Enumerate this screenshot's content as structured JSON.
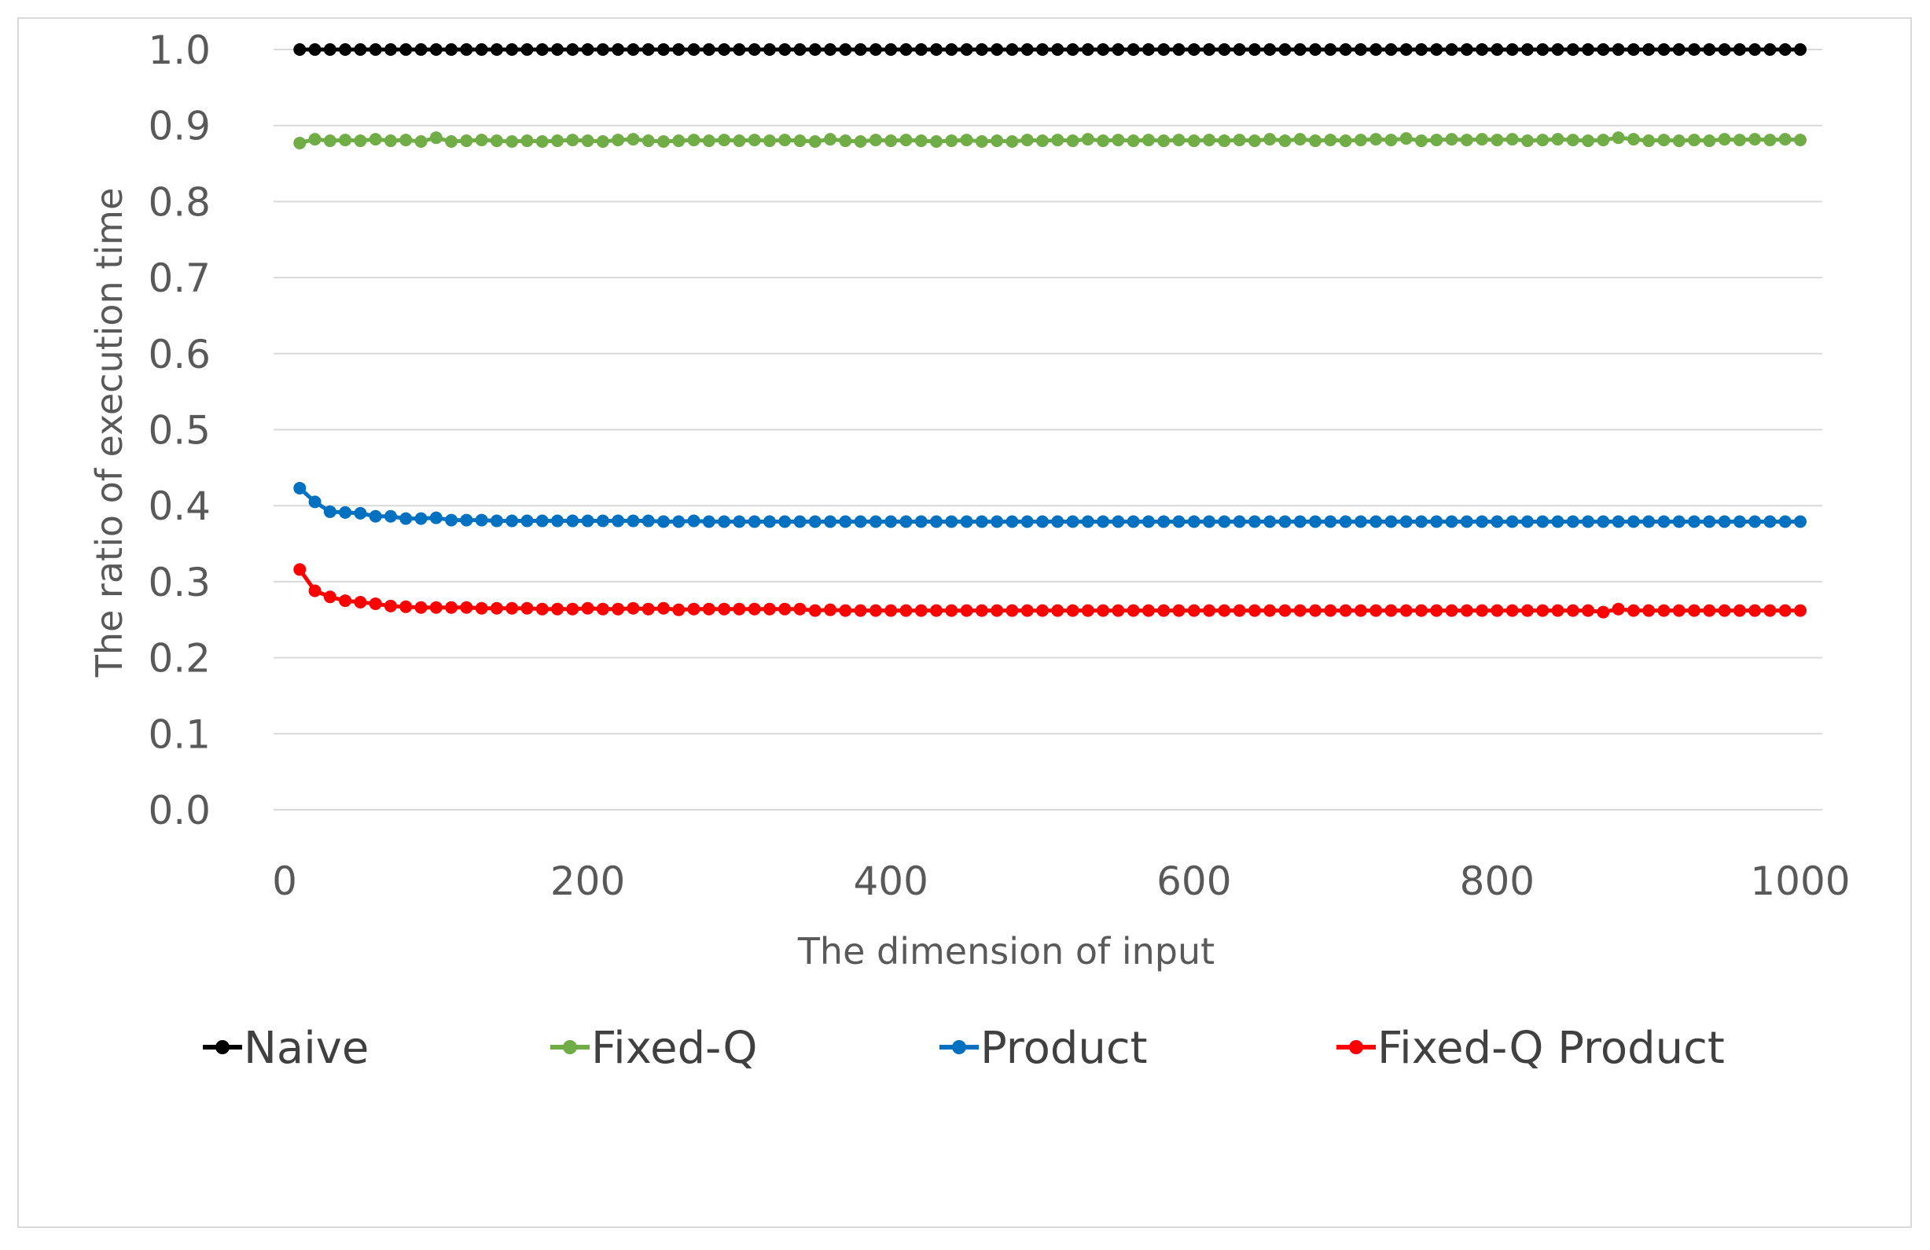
{
  "chart_data": {
    "type": "line",
    "title": "",
    "xlabel": "The dimension of input",
    "ylabel": "The ratio of execution time",
    "xlim": [
      0,
      1000
    ],
    "ylim": [
      0.0,
      1.0
    ],
    "x_ticks": [
      "0",
      "200",
      "400",
      "600",
      "800",
      "1000"
    ],
    "y_ticks": [
      "0.0",
      "0.1",
      "0.2",
      "0.3",
      "0.4",
      "0.5",
      "0.6",
      "0.7",
      "0.8",
      "0.9",
      "1.0"
    ],
    "grid": true,
    "legend_position": "bottom",
    "x": [
      10,
      20,
      30,
      40,
      50,
      60,
      70,
      80,
      90,
      100,
      110,
      120,
      130,
      140,
      150,
      160,
      170,
      180,
      190,
      200,
      210,
      220,
      230,
      240,
      250,
      260,
      270,
      280,
      290,
      300,
      310,
      320,
      330,
      340,
      350,
      360,
      370,
      380,
      390,
      400,
      410,
      420,
      430,
      440,
      450,
      460,
      470,
      480,
      490,
      500,
      510,
      520,
      530,
      540,
      550,
      560,
      570,
      580,
      590,
      600,
      610,
      620,
      630,
      640,
      650,
      660,
      670,
      680,
      690,
      700,
      710,
      720,
      730,
      740,
      750,
      760,
      770,
      780,
      790,
      800,
      810,
      820,
      830,
      840,
      850,
      860,
      870,
      880,
      890,
      900,
      910,
      920,
      930,
      940,
      950,
      960,
      970,
      980,
      990,
      1000
    ],
    "series": [
      {
        "name": "Naive",
        "color": "#000000",
        "values": [
          1.0,
          1.0,
          1.0,
          1.0,
          1.0,
          1.0,
          1.0,
          1.0,
          1.0,
          1.0,
          1.0,
          1.0,
          1.0,
          1.0,
          1.0,
          1.0,
          1.0,
          1.0,
          1.0,
          1.0,
          1.0,
          1.0,
          1.0,
          1.0,
          1.0,
          1.0,
          1.0,
          1.0,
          1.0,
          1.0,
          1.0,
          1.0,
          1.0,
          1.0,
          1.0,
          1.0,
          1.0,
          1.0,
          1.0,
          1.0,
          1.0,
          1.0,
          1.0,
          1.0,
          1.0,
          1.0,
          1.0,
          1.0,
          1.0,
          1.0,
          1.0,
          1.0,
          1.0,
          1.0,
          1.0,
          1.0,
          1.0,
          1.0,
          1.0,
          1.0,
          1.0,
          1.0,
          1.0,
          1.0,
          1.0,
          1.0,
          1.0,
          1.0,
          1.0,
          1.0,
          1.0,
          1.0,
          1.0,
          1.0,
          1.0,
          1.0,
          1.0,
          1.0,
          1.0,
          1.0,
          1.0,
          1.0,
          1.0,
          1.0,
          1.0,
          1.0,
          1.0,
          1.0,
          1.0,
          1.0,
          1.0,
          1.0,
          1.0,
          1.0,
          1.0,
          1.0,
          1.0,
          1.0,
          1.0,
          1.0
        ]
      },
      {
        "name": "Fixed-Q",
        "color": "#70ad47",
        "values": [
          0.877,
          0.882,
          0.88,
          0.881,
          0.88,
          0.882,
          0.88,
          0.881,
          0.879,
          0.884,
          0.879,
          0.88,
          0.881,
          0.88,
          0.879,
          0.88,
          0.879,
          0.88,
          0.881,
          0.88,
          0.879,
          0.881,
          0.882,
          0.88,
          0.879,
          0.88,
          0.881,
          0.88,
          0.881,
          0.88,
          0.881,
          0.88,
          0.881,
          0.88,
          0.879,
          0.882,
          0.88,
          0.879,
          0.881,
          0.88,
          0.881,
          0.88,
          0.879,
          0.88,
          0.881,
          0.879,
          0.88,
          0.879,
          0.881,
          0.88,
          0.881,
          0.88,
          0.882,
          0.88,
          0.881,
          0.88,
          0.881,
          0.88,
          0.881,
          0.88,
          0.881,
          0.88,
          0.881,
          0.88,
          0.882,
          0.88,
          0.882,
          0.88,
          0.881,
          0.88,
          0.881,
          0.882,
          0.881,
          0.883,
          0.88,
          0.881,
          0.882,
          0.881,
          0.882,
          0.881,
          0.882,
          0.88,
          0.881,
          0.882,
          0.881,
          0.88,
          0.881,
          0.884,
          0.882,
          0.88,
          0.881,
          0.88,
          0.881,
          0.88,
          0.882,
          0.881,
          0.882,
          0.881,
          0.882,
          0.881
        ]
      },
      {
        "name": "Product",
        "color": "#0070c0",
        "values": [
          0.423,
          0.405,
          0.392,
          0.391,
          0.39,
          0.386,
          0.386,
          0.383,
          0.383,
          0.384,
          0.381,
          0.381,
          0.381,
          0.38,
          0.38,
          0.38,
          0.38,
          0.38,
          0.38,
          0.38,
          0.38,
          0.38,
          0.38,
          0.38,
          0.379,
          0.379,
          0.38,
          0.379,
          0.379,
          0.379,
          0.379,
          0.379,
          0.379,
          0.379,
          0.379,
          0.379,
          0.379,
          0.379,
          0.379,
          0.379,
          0.379,
          0.379,
          0.379,
          0.379,
          0.379,
          0.379,
          0.379,
          0.379,
          0.379,
          0.379,
          0.379,
          0.379,
          0.379,
          0.379,
          0.379,
          0.379,
          0.379,
          0.379,
          0.379,
          0.379,
          0.379,
          0.379,
          0.379,
          0.379,
          0.379,
          0.379,
          0.379,
          0.379,
          0.379,
          0.379,
          0.379,
          0.379,
          0.379,
          0.379,
          0.379,
          0.379,
          0.379,
          0.379,
          0.379,
          0.379,
          0.379,
          0.379,
          0.379,
          0.379,
          0.379,
          0.379,
          0.379,
          0.379,
          0.379,
          0.379,
          0.379,
          0.379,
          0.379,
          0.379,
          0.379,
          0.379,
          0.379,
          0.379,
          0.379,
          0.379
        ]
      },
      {
        "name": "Fixed-Q Product",
        "color": "#ff0000",
        "values": [
          0.316,
          0.288,
          0.28,
          0.275,
          0.273,
          0.271,
          0.268,
          0.267,
          0.266,
          0.266,
          0.266,
          0.266,
          0.265,
          0.265,
          0.265,
          0.265,
          0.264,
          0.264,
          0.264,
          0.265,
          0.264,
          0.264,
          0.265,
          0.264,
          0.265,
          0.263,
          0.264,
          0.264,
          0.264,
          0.264,
          0.264,
          0.264,
          0.264,
          0.264,
          0.262,
          0.263,
          0.262,
          0.262,
          0.262,
          0.262,
          0.262,
          0.262,
          0.262,
          0.262,
          0.262,
          0.262,
          0.262,
          0.262,
          0.262,
          0.262,
          0.262,
          0.262,
          0.262,
          0.262,
          0.262,
          0.262,
          0.262,
          0.262,
          0.262,
          0.262,
          0.262,
          0.262,
          0.262,
          0.262,
          0.262,
          0.262,
          0.262,
          0.262,
          0.262,
          0.262,
          0.262,
          0.262,
          0.262,
          0.262,
          0.262,
          0.262,
          0.262,
          0.262,
          0.262,
          0.262,
          0.262,
          0.262,
          0.262,
          0.262,
          0.262,
          0.262,
          0.26,
          0.264,
          0.262,
          0.262,
          0.262,
          0.262,
          0.262,
          0.262,
          0.262,
          0.262,
          0.262,
          0.262,
          0.262,
          0.262
        ]
      }
    ]
  }
}
